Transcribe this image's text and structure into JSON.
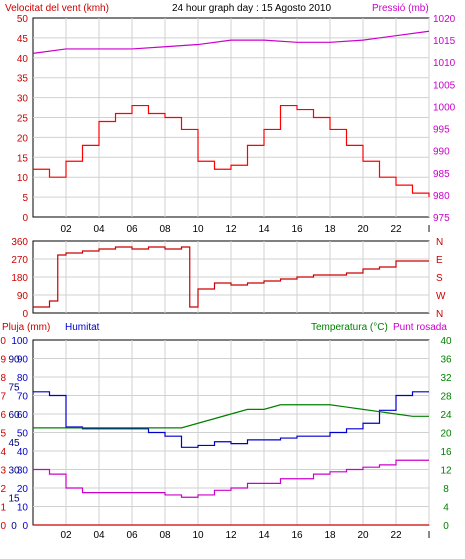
{
  "header": {
    "wind_label": "Velocitat del vent (kmh)",
    "title": "24 hour graph day : 15 Agosto 2010",
    "pressure_label": "Pressió (mb)"
  },
  "colors": {
    "wind_speed": "#ff0000",
    "wind_avg": "#0000cc",
    "wind_low": "#008000",
    "pressure": "#cc00cc",
    "direction": "#cc0000",
    "humidity": "#0000cc",
    "temperature": "#008000",
    "dewpoint": "#cc00cc",
    "rain": "#cc0000",
    "grid": "#d0d0d0",
    "panel_border": "#000000"
  },
  "panel1": {
    "wind_ticks": [
      "0",
      "5",
      "10",
      "15",
      "20",
      "25",
      "30",
      "35",
      "40",
      "45",
      "50"
    ],
    "pressure_ticks": [
      "975",
      "980",
      "985",
      "990",
      "995",
      "1000",
      "1005",
      "1010",
      "1015",
      "1020"
    ]
  },
  "panel2": {
    "dir_ticks": [
      "0",
      "90",
      "180",
      "270",
      "360"
    ],
    "compass": [
      "N",
      "W",
      "S",
      "E",
      "N"
    ]
  },
  "panel3": {
    "rain_label": "Pluja (mm)",
    "humidity_label": "Humitat",
    "temperature_label": "Temperatura (°C)",
    "dewpoint_label": "Punt rosada",
    "rain_ticks": [
      "0",
      "1",
      "2",
      "3",
      "4",
      "5",
      "6",
      "7",
      "8",
      "9",
      "10"
    ],
    "humidity_ticks": [
      "0",
      "10",
      "20",
      "30",
      "40",
      "50",
      "60",
      "70",
      "80",
      "90",
      "100"
    ],
    "temp_ticks": [
      "0",
      "4",
      "8",
      "12",
      "16",
      "20",
      "24",
      "28",
      "32",
      "36",
      "40"
    ],
    "rain_temp_ticks": [
      "0",
      "15",
      "30",
      "45",
      "60",
      "75",
      "90"
    ]
  },
  "x_ticks": [
    "02",
    "04",
    "06",
    "08",
    "10",
    "12",
    "14",
    "16",
    "18",
    "20",
    "22",
    "I"
  ],
  "chart_data": [
    {
      "type": "line",
      "title": "Velocitat del vent (kmh) / Pressió (mb)",
      "ylim": [
        0,
        50
      ],
      "y2lim": [
        975,
        1020
      ],
      "series": [
        {
          "name": "Velocitat del vent (kmh)",
          "x": [
            0,
            1,
            2,
            3,
            4,
            5,
            6,
            7,
            8,
            9,
            10,
            11,
            12,
            13,
            14,
            15,
            16,
            17,
            18,
            19,
            20,
            21,
            22,
            23,
            24
          ],
          "values": [
            12,
            10,
            14,
            18,
            24,
            26,
            28,
            26,
            25,
            22,
            14,
            12,
            13,
            18,
            22,
            28,
            27,
            25,
            22,
            18,
            14,
            10,
            8,
            6,
            5
          ]
        },
        {
          "name": "Pressió (mb)",
          "x": [
            0,
            2,
            4,
            6,
            8,
            10,
            12,
            14,
            16,
            18,
            20,
            22,
            24
          ],
          "values": [
            1012,
            1013,
            1013,
            1013,
            1013.5,
            1014,
            1015,
            1015,
            1014.5,
            1014.5,
            1015,
            1016,
            1017
          ]
        }
      ]
    },
    {
      "type": "line",
      "title": "Direcció del vent",
      "ylim": [
        0,
        360
      ],
      "series": [
        {
          "name": "Direcció",
          "x": [
            0,
            1,
            1.5,
            2,
            3,
            4,
            5,
            6,
            7,
            8,
            9,
            9.5,
            10,
            11,
            12,
            13,
            14,
            15,
            16,
            17,
            18,
            19,
            20,
            21,
            22,
            23,
            24
          ],
          "values": [
            30,
            60,
            290,
            300,
            310,
            320,
            330,
            320,
            330,
            320,
            330,
            30,
            120,
            150,
            140,
            150,
            160,
            170,
            180,
            190,
            190,
            200,
            220,
            230,
            260,
            260,
            260
          ]
        }
      ]
    },
    {
      "type": "line",
      "title": "Pluja (mm) / Humitat / Temperatura (°C) / Punt rosada",
      "ylim": [
        0,
        100
      ],
      "y2lim": [
        0,
        40
      ],
      "series": [
        {
          "name": "Humitat",
          "x": [
            0,
            1,
            2,
            3,
            4,
            5,
            6,
            7,
            8,
            9,
            10,
            11,
            12,
            13,
            14,
            15,
            16,
            17,
            18,
            19,
            20,
            21,
            22,
            23,
            24
          ],
          "values": [
            72,
            70,
            53,
            52,
            52,
            52,
            52,
            50,
            48,
            42,
            43,
            45,
            44,
            46,
            46,
            47,
            48,
            48,
            50,
            52,
            55,
            62,
            70,
            72,
            72
          ]
        },
        {
          "name": "Temperatura (°C)",
          "x": [
            0,
            1,
            2,
            3,
            4,
            5,
            6,
            7,
            8,
            9,
            10,
            11,
            12,
            13,
            14,
            15,
            16,
            17,
            18,
            19,
            20,
            21,
            22,
            23,
            24
          ],
          "values": [
            21,
            21,
            21,
            21,
            21,
            21,
            21,
            21,
            21,
            21,
            22,
            23,
            24,
            25,
            25,
            26,
            26,
            26,
            26,
            25.5,
            25,
            24.5,
            24,
            23.5,
            23.5
          ]
        },
        {
          "name": "Punt rosada",
          "x": [
            0,
            1,
            2,
            3,
            4,
            5,
            6,
            7,
            8,
            9,
            10,
            11,
            12,
            13,
            14,
            15,
            16,
            17,
            18,
            19,
            20,
            21,
            22,
            23,
            24
          ],
          "values": [
            12,
            11,
            8,
            7,
            7,
            7,
            7,
            7,
            6.5,
            6,
            6.5,
            7.5,
            8,
            9,
            9,
            10,
            10,
            11,
            11.5,
            12,
            12.5,
            13,
            14,
            14,
            14
          ]
        },
        {
          "name": "Pluja (mm)",
          "x": [
            0,
            24
          ],
          "values": [
            0,
            0
          ]
        }
      ]
    }
  ]
}
